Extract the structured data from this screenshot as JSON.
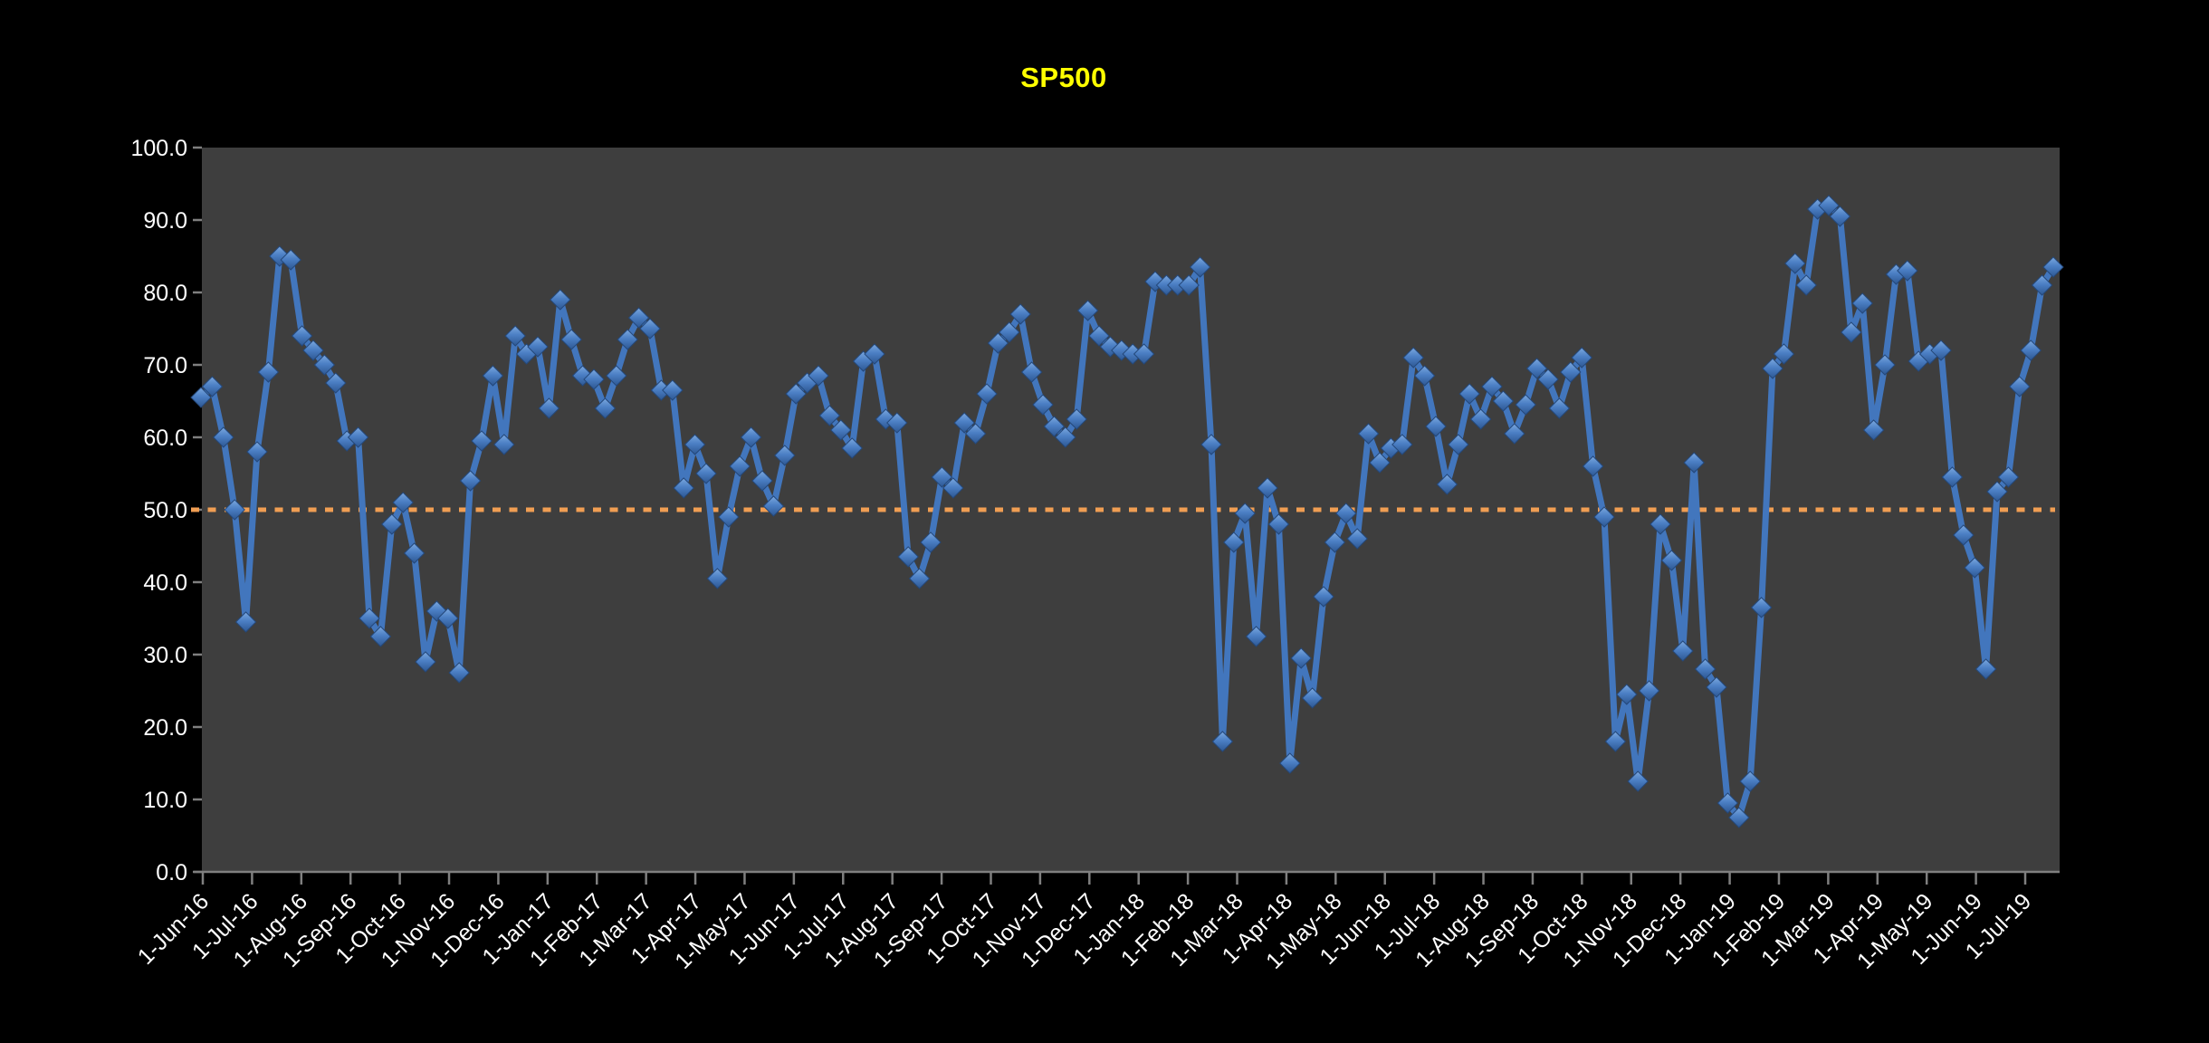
{
  "chart": {
    "background": "#000000",
    "plot_background": "#3E3E3E",
    "title_color": "#FFFF00",
    "axis_color": "#7F7F7F",
    "label_color": "#FFFFFF",
    "series_color": "#4276BD",
    "marker_gradient": [
      "#7BA7DE",
      "#4B7FC4",
      "#2D5793"
    ],
    "marker_edge": "#24487A",
    "reference_line_color": "#F09E53"
  },
  "chart_data": {
    "type": "line",
    "title": "SP500",
    "x_frequency": "weekly",
    "x_range": [
      "1-Jun-16",
      "1-Jul-19"
    ],
    "ylim": [
      0,
      100
    ],
    "grid": "off",
    "legend": "none",
    "marker": "diamond-3d",
    "reference_line": {
      "value": 50,
      "style": "dotted",
      "color": "#F09E53"
    },
    "y_tick_labels": [
      "0.0",
      "10.0",
      "20.0",
      "30.0",
      "40.0",
      "50.0",
      "60.0",
      "70.0",
      "80.0",
      "90.0",
      "100.0"
    ],
    "x_tick_labels": [
      "1-Jun-16",
      "1-Jul-16",
      "1-Aug-16",
      "1-Sep-16",
      "1-Oct-16",
      "1-Nov-16",
      "1-Dec-16",
      "1-Jan-17",
      "1-Feb-17",
      "1-Mar-17",
      "1-Apr-17",
      "1-May-17",
      "1-Jun-17",
      "1-Jul-17",
      "1-Aug-17",
      "1-Sep-17",
      "1-Oct-17",
      "1-Nov-17",
      "1-Dec-17",
      "1-Jan-18",
      "1-Feb-18",
      "1-Mar-18",
      "1-Apr-18",
      "1-May-18",
      "1-Jun-18",
      "1-Jul-18",
      "1-Aug-18",
      "1-Sep-18",
      "1-Oct-18",
      "1-Nov-18",
      "1-Dec-18",
      "1-Jan-19",
      "1-Feb-19",
      "1-Mar-19",
      "1-Apr-19",
      "1-May-19",
      "1-Jun-19",
      "1-Jul-19"
    ],
    "series": [
      {
        "name": "SP500",
        "color": "#4276BD",
        "values": [
          65.5,
          67,
          60,
          50,
          34.5,
          58,
          69,
          85,
          84.5,
          74,
          72,
          70,
          67.5,
          59.5,
          60,
          35,
          32.5,
          48,
          51,
          44,
          29,
          36,
          35,
          27.5,
          54,
          59.5,
          68.5,
          59,
          74,
          71.5,
          72.5,
          64,
          79,
          73.5,
          68.5,
          68,
          64,
          68.5,
          73.5,
          76.5,
          75,
          66.5,
          66.5,
          53,
          59,
          55,
          40.5,
          49,
          56,
          60,
          54,
          50.5,
          57.5,
          66,
          67.5,
          68.5,
          63,
          61,
          58.5,
          70.5,
          71.5,
          62.5,
          62,
          43.5,
          40.5,
          45.5,
          54.5,
          53,
          62,
          60.5,
          66,
          73,
          74.5,
          77,
          69,
          64.5,
          61.5,
          60,
          62.5,
          77.5,
          74,
          72.5,
          72,
          71.5,
          71.5,
          81.5,
          81,
          81,
          81,
          83.5,
          59,
          18,
          45.5,
          49.5,
          32.5,
          53,
          48,
          15,
          29.5,
          24,
          38,
          45.5,
          49.5,
          46,
          60.5,
          56.5,
          58.5,
          59,
          71,
          68.5,
          61.5,
          53.5,
          59,
          66,
          62.5,
          67,
          65,
          60.5,
          64.5,
          69.5,
          68,
          64,
          69,
          71,
          56,
          49,
          18,
          24.5,
          12.5,
          25,
          48,
          43,
          30.5,
          56.5,
          28,
          25.5,
          9.5,
          7.5,
          12.5,
          36.5,
          69.5,
          71.5,
          84,
          81,
          91.5,
          92,
          90.5,
          74.5,
          78.5,
          61,
          70,
          82.5,
          83,
          70.5,
          71.5,
          72,
          54.5,
          46.5,
          42,
          28,
          52.5,
          54.5,
          67,
          72,
          81,
          83.5
        ]
      }
    ]
  }
}
